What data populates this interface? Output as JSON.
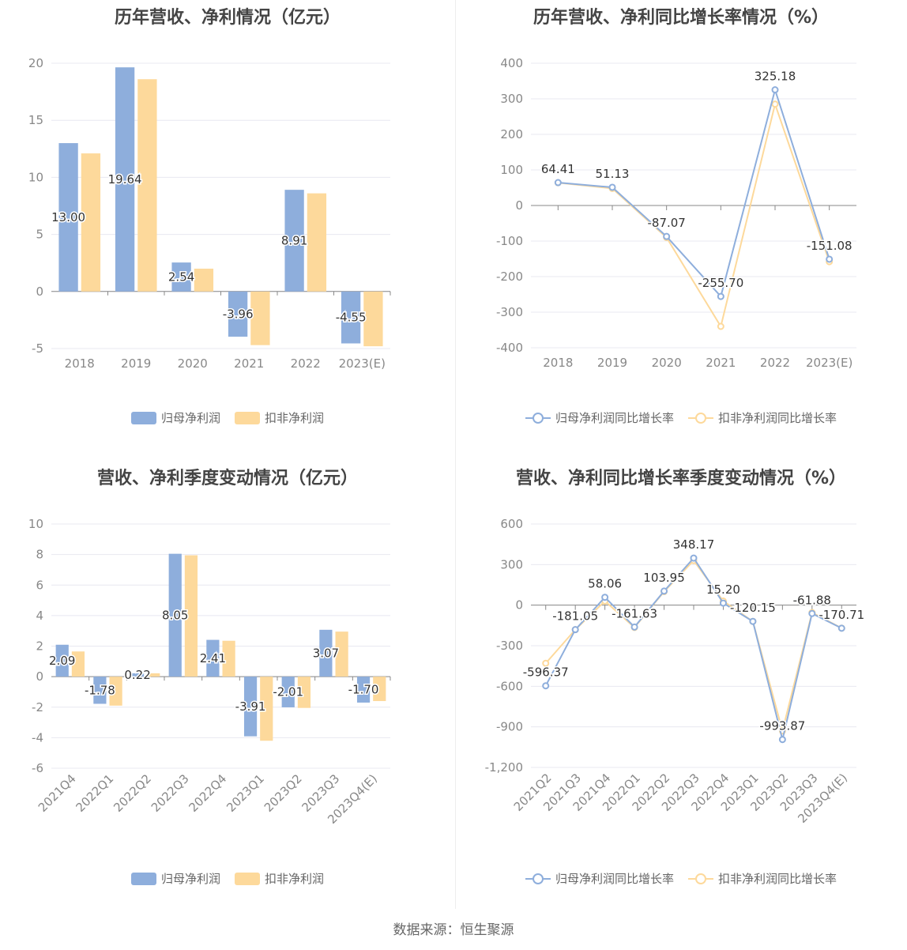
{
  "source": "数据来源：恒生聚源",
  "colors": {
    "primary": "#8eaedc",
    "secondary": "#fdd99b",
    "grid": "#e8e8f0",
    "axis": "#888888"
  },
  "chart_data": [
    {
      "type": "bar",
      "title": "历年营收、净利情况（亿元）",
      "categories": [
        "2018",
        "2019",
        "2020",
        "2021",
        "2022",
        "2023(E)"
      ],
      "ylim": [
        -5,
        20
      ],
      "yticks": [
        -5,
        0,
        5,
        10,
        15,
        20
      ],
      "grid": true,
      "legend": "bottom",
      "series": [
        {
          "name": "归母净利润",
          "values": [
            13.0,
            19.64,
            2.54,
            -3.96,
            8.91,
            -4.55
          ],
          "labels": [
            "13.00",
            "19.64",
            "2.54",
            "-3.96",
            "8.91",
            "-4.55"
          ]
        },
        {
          "name": "扣非净利润",
          "values": [
            12.1,
            18.6,
            2.0,
            -4.7,
            8.6,
            -4.8
          ]
        }
      ]
    },
    {
      "type": "line",
      "title": "历年营收、净利同比增长率情况（%）",
      "categories": [
        "2018",
        "2019",
        "2020",
        "2021",
        "2022",
        "2023(E)"
      ],
      "ylim": [
        -400,
        400
      ],
      "yticks": [
        -400,
        -300,
        -200,
        -100,
        0,
        100,
        200,
        300,
        400
      ],
      "grid": true,
      "legend": "bottom",
      "series": [
        {
          "name": "归母净利润同比增长率",
          "values": [
            64.41,
            51.13,
            -87.07,
            -255.7,
            325.18,
            -151.08
          ],
          "labels": [
            "64.41",
            "51.13",
            "-87.07",
            "-255.70",
            "325.18",
            "-151.08"
          ]
        },
        {
          "name": "扣非净利润同比增长率",
          "values": [
            64,
            48,
            -90,
            -340,
            285,
            -158
          ]
        }
      ]
    },
    {
      "type": "bar",
      "title": "营收、净利季度变动情况（亿元）",
      "categories": [
        "2021Q4",
        "2022Q1",
        "2022Q2",
        "2022Q3",
        "2022Q4",
        "2023Q1",
        "2023Q2",
        "2023Q3",
        "2023Q4(E)"
      ],
      "ylim": [
        -6,
        10
      ],
      "yticks": [
        -6,
        -4,
        -2,
        0,
        2,
        4,
        6,
        8,
        10
      ],
      "grid": true,
      "legend": "bottom",
      "series": [
        {
          "name": "归母净利润",
          "values": [
            2.09,
            -1.78,
            0.22,
            8.05,
            2.41,
            -3.91,
            -2.01,
            3.07,
            -1.7
          ],
          "labels": [
            "2.09",
            "-1.78",
            "0.22",
            "8.05",
            "2.41",
            "-3.91",
            "-2.01",
            "3.07",
            "-1.70"
          ]
        },
        {
          "name": "扣非净利润",
          "values": [
            1.65,
            -1.9,
            0.22,
            7.95,
            2.35,
            -4.2,
            -2.05,
            2.95,
            -1.6
          ]
        }
      ]
    },
    {
      "type": "line",
      "title": "营收、净利同比增长率季度变动情况（%）",
      "categories": [
        "2021Q2",
        "2021Q3",
        "2021Q4",
        "2022Q1",
        "2022Q2",
        "2022Q3",
        "2022Q4",
        "2023Q1",
        "2023Q2",
        "2023Q3",
        "2023Q4(E)"
      ],
      "ylim": [
        -1200,
        600
      ],
      "yticks": [
        -1200,
        -900,
        -600,
        -300,
        0,
        300,
        600
      ],
      "ytick_labels": [
        "-1,200",
        "-900",
        "-600",
        "-300",
        "0",
        "300",
        "600"
      ],
      "grid": true,
      "legend": "bottom",
      "series": [
        {
          "name": "归母净利润同比增长率",
          "values": [
            -596.37,
            -181.05,
            58.06,
            -161.63,
            103.95,
            348.17,
            15.2,
            -120.15,
            -993.87,
            -61.88,
            -170.71
          ],
          "labels": [
            "-596.37",
            "-181.05",
            "58.06",
            "-161.63",
            "103.95",
            "348.17",
            "15.20",
            "-120.15",
            "-993.87",
            "-61.88",
            "-170.71"
          ]
        },
        {
          "name": "扣非净利润同比增长率",
          "values": [
            -430,
            -181,
            30,
            -165,
            100,
            330,
            30,
            -120,
            -930,
            -55,
            -170
          ]
        }
      ]
    }
  ]
}
